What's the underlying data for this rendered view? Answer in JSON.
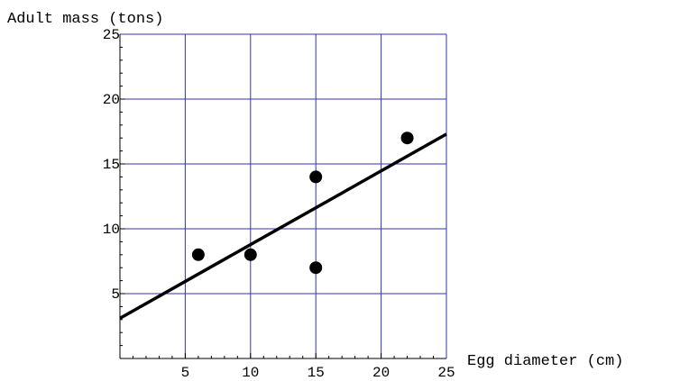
{
  "chart_data": {
    "type": "scatter",
    "title": "",
    "xlabel": "Egg diameter (cm)",
    "ylabel": "Adult mass (tons)",
    "xlim": [
      0,
      25
    ],
    "ylim": [
      0,
      25
    ],
    "x_ticks": [
      5,
      10,
      15,
      20,
      25
    ],
    "y_ticks": [
      5,
      10,
      15,
      20,
      25
    ],
    "grid": true,
    "colors": {
      "grid": "#3333aa",
      "points": "#000000",
      "line": "#000000",
      "axis": "#000000"
    },
    "series": [
      {
        "type": "scatter",
        "points": [
          {
            "x": 6,
            "y": 8
          },
          {
            "x": 10,
            "y": 8
          },
          {
            "x": 15,
            "y": 14
          },
          {
            "x": 15,
            "y": 7
          },
          {
            "x": 22,
            "y": 17
          }
        ]
      },
      {
        "type": "line",
        "points": [
          {
            "x": 0,
            "y": 3.1
          },
          {
            "x": 25,
            "y": 17.3
          }
        ]
      }
    ]
  }
}
